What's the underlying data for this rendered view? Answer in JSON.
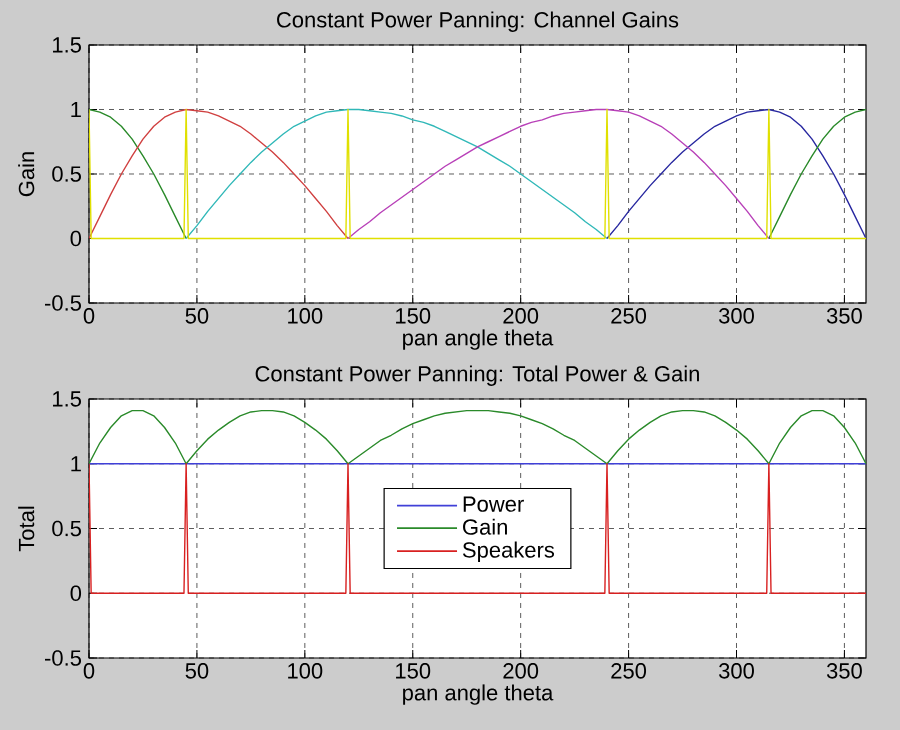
{
  "chart_data": [
    {
      "type": "line",
      "title": "Constant Power Panning: Channel Gains",
      "xlabel": "pan angle theta",
      "ylabel": "Gain",
      "xlim": [
        0,
        360
      ],
      "ylim": [
        -0.5,
        1.5
      ],
      "xticks": [
        0,
        50,
        100,
        150,
        200,
        250,
        300,
        350
      ],
      "yticks": [
        -0.5,
        0,
        0.5,
        1,
        1.5
      ],
      "grid": true,
      "x": [
        0,
        5,
        10,
        15,
        20,
        25,
        30,
        35,
        40,
        45,
        50,
        55,
        60,
        65,
        70,
        75,
        80,
        85,
        90,
        95,
        100,
        105,
        110,
        115,
        120,
        125,
        130,
        135,
        140,
        145,
        150,
        155,
        160,
        165,
        170,
        175,
        180,
        185,
        190,
        195,
        200,
        205,
        210,
        215,
        220,
        225,
        230,
        235,
        240,
        245,
        250,
        255,
        260,
        265,
        270,
        275,
        280,
        285,
        290,
        295,
        300,
        305,
        310,
        315,
        320,
        325,
        330,
        335,
        340,
        345,
        350,
        355,
        360
      ],
      "series": [
        {
          "color": "#2828a0",
          "values": [
            null,
            null,
            null,
            null,
            null,
            null,
            null,
            null,
            null,
            null,
            null,
            null,
            null,
            null,
            null,
            null,
            null,
            null,
            null,
            null,
            null,
            null,
            null,
            null,
            null,
            null,
            null,
            null,
            null,
            null,
            null,
            null,
            null,
            null,
            null,
            null,
            null,
            null,
            null,
            null,
            null,
            null,
            null,
            null,
            null,
            null,
            null,
            null,
            0,
            0.1,
            0.21,
            0.31,
            0.41,
            0.5,
            0.59,
            0.67,
            0.74,
            0.81,
            0.87,
            0.91,
            0.95,
            0.98,
            0.99,
            1,
            0.98,
            0.94,
            0.87,
            0.77,
            0.64,
            0.5,
            0.34,
            0.17,
            0
          ]
        },
        {
          "color": "#2a8a2a",
          "values": [
            1,
            0.98,
            0.94,
            0.87,
            0.77,
            0.64,
            0.5,
            0.34,
            0.17,
            0,
            null,
            null,
            null,
            null,
            null,
            null,
            null,
            null,
            null,
            null,
            null,
            null,
            null,
            null,
            null,
            null,
            null,
            null,
            null,
            null,
            null,
            null,
            null,
            null,
            null,
            null,
            null,
            null,
            null,
            null,
            null,
            null,
            null,
            null,
            null,
            null,
            null,
            null,
            null,
            null,
            null,
            null,
            null,
            null,
            null,
            null,
            null,
            null,
            null,
            null,
            null,
            null,
            null,
            0,
            0.17,
            0.34,
            0.5,
            0.64,
            0.77,
            0.87,
            0.94,
            0.98,
            1
          ]
        },
        {
          "color": "#d04040",
          "values": [
            0,
            0.17,
            0.34,
            0.5,
            0.64,
            0.77,
            0.87,
            0.94,
            0.98,
            1,
            0.99,
            0.98,
            0.95,
            0.91,
            0.87,
            0.81,
            0.74,
            0.67,
            0.59,
            0.5,
            0.41,
            0.31,
            0.21,
            0.1,
            0,
            null,
            null,
            null,
            null,
            null,
            null,
            null,
            null,
            null,
            null,
            null,
            null,
            null,
            null,
            null,
            null,
            null,
            null,
            null,
            null,
            null,
            null,
            null,
            null,
            null,
            null,
            null,
            null,
            null,
            null,
            null,
            null,
            null,
            null,
            null,
            null,
            null,
            null,
            null,
            null,
            null,
            null,
            null,
            null,
            null,
            null,
            null,
            null
          ]
        },
        {
          "color": "#30b8b8",
          "values": [
            null,
            null,
            null,
            null,
            null,
            null,
            null,
            null,
            null,
            0,
            0.1,
            0.21,
            0.31,
            0.41,
            0.5,
            0.59,
            0.67,
            0.74,
            0.81,
            0.87,
            0.91,
            0.95,
            0.98,
            0.99,
            1,
            1,
            0.99,
            0.98,
            0.97,
            0.95,
            0.92,
            0.9,
            0.87,
            0.83,
            0.79,
            0.75,
            0.71,
            0.66,
            0.61,
            0.56,
            0.5,
            0.44,
            0.38,
            0.32,
            0.26,
            0.2,
            0.13,
            0.07,
            0,
            null,
            null,
            null,
            null,
            null,
            null,
            null,
            null,
            null,
            null,
            null,
            null,
            null,
            null,
            null,
            null,
            null,
            null,
            null,
            null,
            null,
            null,
            null,
            null
          ]
        },
        {
          "color": "#b840b8",
          "values": [
            null,
            null,
            null,
            null,
            null,
            null,
            null,
            null,
            null,
            null,
            null,
            null,
            null,
            null,
            null,
            null,
            null,
            null,
            null,
            null,
            null,
            null,
            null,
            null,
            0,
            0.07,
            0.13,
            0.2,
            0.26,
            0.32,
            0.38,
            0.44,
            0.5,
            0.56,
            0.61,
            0.66,
            0.71,
            0.75,
            0.79,
            0.83,
            0.87,
            0.9,
            0.92,
            0.95,
            0.97,
            0.98,
            0.99,
            1,
            1,
            0.99,
            0.98,
            0.95,
            0.91,
            0.87,
            0.81,
            0.74,
            0.67,
            0.59,
            0.5,
            0.41,
            0.31,
            0.21,
            0.1,
            0,
            null,
            null,
            null,
            null,
            null,
            null,
            null,
            null,
            null
          ]
        },
        {
          "color": "#e0e000",
          "x": [
            0,
            1,
            44,
            45,
            46,
            119,
            120,
            121,
            239,
            240,
            241,
            314,
            315,
            316,
            360
          ],
          "values": [
            1,
            0,
            0,
            1,
            0,
            0,
            1,
            0,
            0,
            1,
            0,
            0,
            1,
            0,
            0
          ]
        }
      ]
    },
    {
      "type": "line",
      "title": "Constant Power Panning: Total Power & Gain",
      "xlabel": "pan angle theta",
      "ylabel": "Total",
      "xlim": [
        0,
        360
      ],
      "ylim": [
        -0.5,
        1.5
      ],
      "xticks": [
        0,
        50,
        100,
        150,
        200,
        250,
        300,
        350
      ],
      "yticks": [
        -0.5,
        0,
        0.5,
        1,
        1.5
      ],
      "grid": true,
      "legend": "center",
      "x": [
        0,
        5,
        10,
        15,
        20,
        25,
        30,
        35,
        40,
        45,
        50,
        55,
        60,
        65,
        70,
        75,
        80,
        85,
        90,
        95,
        100,
        105,
        110,
        115,
        120,
        125,
        130,
        135,
        140,
        145,
        150,
        155,
        160,
        165,
        170,
        175,
        180,
        185,
        190,
        195,
        200,
        205,
        210,
        215,
        220,
        225,
        230,
        235,
        240,
        245,
        250,
        255,
        260,
        265,
        270,
        275,
        280,
        285,
        290,
        295,
        300,
        305,
        310,
        315,
        320,
        325,
        330,
        335,
        340,
        345,
        350,
        355,
        360
      ],
      "series": [
        {
          "name": "Power",
          "color": "#4040d8",
          "x": [
            0,
            360
          ],
          "values": [
            1,
            1
          ]
        },
        {
          "name": "Gain",
          "color": "#2a8a2a",
          "values": [
            1,
            1.16,
            1.28,
            1.37,
            1.41,
            1.41,
            1.37,
            1.28,
            1.16,
            1,
            1.1,
            1.19,
            1.26,
            1.32,
            1.37,
            1.4,
            1.41,
            1.41,
            1.4,
            1.37,
            1.32,
            1.26,
            1.19,
            1.1,
            1,
            1.06,
            1.12,
            1.18,
            1.22,
            1.27,
            1.31,
            1.34,
            1.37,
            1.39,
            1.4,
            1.41,
            1.41,
            1.41,
            1.4,
            1.39,
            1.37,
            1.34,
            1.31,
            1.27,
            1.22,
            1.18,
            1.12,
            1.06,
            1,
            1.1,
            1.19,
            1.26,
            1.32,
            1.37,
            1.4,
            1.41,
            1.41,
            1.4,
            1.37,
            1.32,
            1.26,
            1.19,
            1.1,
            1,
            1.16,
            1.28,
            1.37,
            1.41,
            1.41,
            1.37,
            1.28,
            1.16,
            1
          ]
        },
        {
          "name": "Speakers",
          "color": "#d82020",
          "x": [
            0,
            1,
            44,
            45,
            46,
            119,
            120,
            121,
            239,
            240,
            241,
            314,
            315,
            316,
            360
          ],
          "values": [
            1,
            0,
            0,
            1,
            0,
            0,
            1,
            0,
            0,
            1,
            0,
            0,
            1,
            0,
            0
          ]
        }
      ]
    }
  ]
}
